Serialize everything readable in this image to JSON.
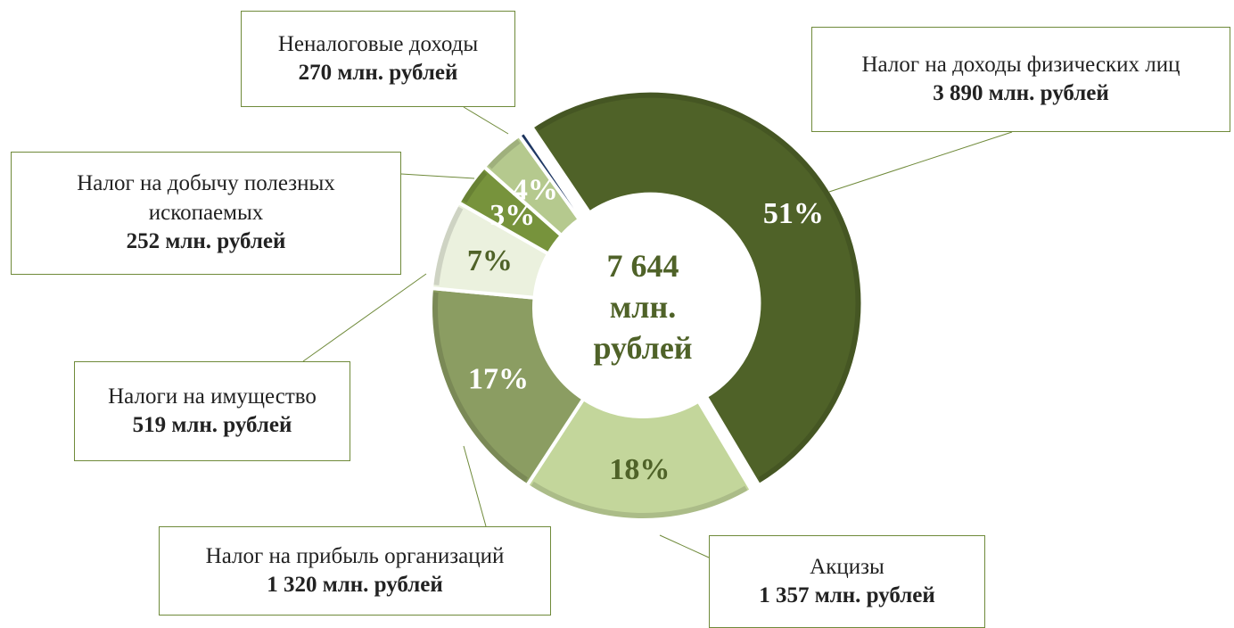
{
  "chart_data": {
    "type": "donut",
    "total_label": [
      "7 644",
      "млн.",
      "рублей"
    ],
    "categories": [
      "Налог на доходы физических лиц",
      "Акцизы",
      "Налог на прибыль организаций",
      "Налоги на имущество",
      "Налог на добычу полезных ископаемых",
      "Неналоговые доходы",
      null
    ],
    "values": [
      3890,
      1357,
      1320,
      519,
      252,
      270,
      36
    ],
    "value_labels": [
      "3 890 млн. рублей",
      "1 357 млн. рублей",
      "1 320 млн. рублей",
      "519 млн. рублей",
      "252 млн. рублей",
      "270 млн. рублей",
      null
    ],
    "percent_labels": [
      "51%",
      "18%",
      "17%",
      "7%",
      "3%",
      "4%",
      null
    ],
    "colors": [
      "#4f6228",
      "#c3d69b",
      "#8b9d62",
      "#ebf1de",
      "#77933c",
      "#b5c98e",
      "#1f3864"
    ],
    "percent_label_colors": [
      "#ffffff",
      "#4f6228",
      "#ffffff",
      "#4f6228",
      "#ffffff",
      "#ffffff",
      null
    ]
  }
}
